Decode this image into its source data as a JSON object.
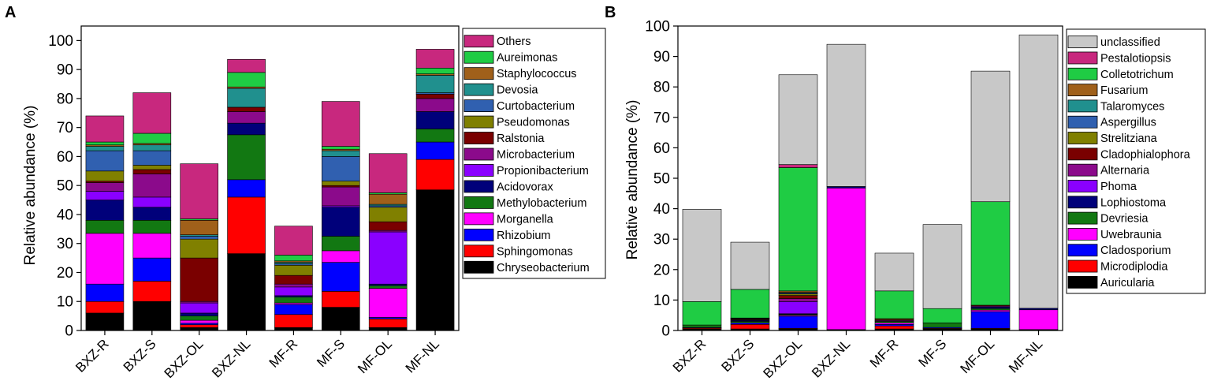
{
  "panels": [
    {
      "letter": "A",
      "ylabel": "Relative abundance (%)",
      "ylim": [
        0,
        105
      ],
      "yticks": [
        0,
        10,
        20,
        30,
        40,
        50,
        60,
        70,
        80,
        90,
        100
      ]
    },
    {
      "letter": "B",
      "ylabel": "Relative abundance (%)",
      "ylim": [
        0,
        100
      ],
      "yticks": [
        0,
        10,
        20,
        30,
        40,
        50,
        60,
        70,
        80,
        90,
        100
      ]
    }
  ],
  "chart_data": [
    {
      "type": "bar",
      "stacked": true,
      "title": "A",
      "xlabel": "",
      "ylabel": "Relative abundance (%)",
      "ylim": [
        0,
        105
      ],
      "categories": [
        "BXZ-R",
        "BXZ-S",
        "BXZ-OL",
        "BXZ-NL",
        "MF-R",
        "MF-S",
        "MF-OL",
        "MF-NL"
      ],
      "legend": [
        "Others",
        "Aureimonas",
        "Staphylococcus",
        "Devosia",
        "Curtobacterium",
        "Pseudomonas",
        "Ralstonia",
        "Microbacterium",
        "Propionibacterium",
        "Acidovorax",
        "Methylobacterium",
        "Morganella",
        "Rhizobium",
        "Sphingomonas",
        "Chryseobacterium"
      ],
      "series": [
        {
          "name": "Chryseobacterium",
          "color": "#000000",
          "values": [
            6,
            10,
            1,
            26.5,
            1,
            8,
            1,
            48.5
          ]
        },
        {
          "name": "Sphingomonas",
          "color": "#ff0000",
          "values": [
            4,
            7,
            1,
            19.5,
            4.5,
            5.5,
            3,
            10.5
          ]
        },
        {
          "name": "Rhizobium",
          "color": "#0000ff",
          "values": [
            6,
            8,
            0.5,
            6,
            3.5,
            10,
            0.5,
            6
          ]
        },
        {
          "name": "Morganella",
          "color": "#ff00ff",
          "values": [
            17.5,
            8.5,
            1,
            0,
            0.5,
            4,
            10,
            0
          ]
        },
        {
          "name": "Methylobacterium",
          "color": "#127812",
          "values": [
            4.5,
            4.5,
            1.5,
            15.5,
            2,
            5,
            1,
            4.5
          ]
        },
        {
          "name": "Acidovorax",
          "color": "#00007a",
          "values": [
            7,
            4.5,
            1,
            4,
            0.5,
            10,
            0.5,
            6
          ]
        },
        {
          "name": "Propionibacterium",
          "color": "#8a00ff",
          "values": [
            3,
            3.5,
            3.5,
            0,
            3,
            0.5,
            18,
            0
          ]
        },
        {
          "name": "Microbacterium",
          "color": "#8b0a8b",
          "values": [
            3,
            8,
            0.5,
            4,
            1,
            6.5,
            0.5,
            4.5
          ]
        },
        {
          "name": "Ralstonia",
          "color": "#7a0000",
          "values": [
            0.5,
            1.5,
            15,
            1.5,
            3,
            0.5,
            3,
            1.5
          ]
        },
        {
          "name": "Pseudomonas",
          "color": "#808000",
          "values": [
            3.5,
            1.5,
            6.5,
            0,
            3.5,
            1.5,
            5,
            0
          ]
        },
        {
          "name": "Curtobacterium",
          "color": "#3060b0",
          "values": [
            7,
            5,
            1,
            0,
            0.5,
            8.5,
            0.5,
            0.5
          ]
        },
        {
          "name": "Devosia",
          "color": "#20908e",
          "values": [
            1.5,
            2,
            0.5,
            6.5,
            0.5,
            2,
            0.5,
            6
          ]
        },
        {
          "name": "Staphylococcus",
          "color": "#a0601a",
          "values": [
            0.5,
            0.5,
            5,
            0.5,
            0.5,
            0.5,
            3.5,
            0.5
          ]
        },
        {
          "name": "Aureimonas",
          "color": "#1fcc44",
          "values": [
            1,
            3.5,
            0.5,
            5,
            2,
            1,
            0.5,
            2
          ]
        },
        {
          "name": "Others",
          "color": "#c8287e",
          "values": [
            9,
            14,
            19,
            4.5,
            10,
            15.5,
            13.5,
            6.5
          ]
        }
      ]
    },
    {
      "type": "bar",
      "stacked": true,
      "title": "B",
      "xlabel": "",
      "ylabel": "Relative abundance (%)",
      "ylim": [
        0,
        100
      ],
      "categories": [
        "BXZ-R",
        "BXZ-S",
        "BXZ-OL",
        "BXZ-NL",
        "MF-R",
        "MF-S",
        "MF-OL",
        "MF-NL"
      ],
      "legend": [
        "unclassified",
        "Pestalotiopsis",
        "Colletotrichum",
        "Fusarium",
        "Talaromyces",
        "Aspergillus",
        "Strelitziana",
        "Cladophialophora",
        "Alternaria",
        "Phoma",
        "Lophiostoma",
        "Devriesia",
        "Uwebraunia",
        "Cladosporium",
        "Microdiplodia",
        "Auricularia"
      ],
      "series": [
        {
          "name": "Auricularia",
          "color": "#000000",
          "values": [
            0.5,
            0.5,
            0.5,
            0.3,
            0.5,
            0.5,
            0.5,
            0.3
          ]
        },
        {
          "name": "Microdiplodia",
          "color": "#ff0000",
          "values": [
            0.3,
            1.5,
            0.2,
            0,
            1,
            0.2,
            0.2,
            0
          ]
        },
        {
          "name": "Cladosporium",
          "color": "#0000ff",
          "values": [
            0.2,
            0.5,
            4,
            0,
            0.5,
            0.3,
            5.5,
            0
          ]
        },
        {
          "name": "Uwebraunia",
          "color": "#ff00ff",
          "values": [
            0,
            0,
            0.3,
            46.5,
            0.5,
            0,
            0.5,
            6.5
          ]
        },
        {
          "name": "Devriesia",
          "color": "#127812",
          "values": [
            0.8,
            0.5,
            0.3,
            0,
            0.5,
            1.5,
            0.5,
            0
          ]
        },
        {
          "name": "Lophiostoma",
          "color": "#00007a",
          "values": [
            0,
            0.3,
            0.2,
            0.5,
            0,
            0,
            0.5,
            0.5
          ]
        },
        {
          "name": "Phoma",
          "color": "#8a00ff",
          "values": [
            0,
            0,
            4,
            0,
            0,
            0,
            0,
            0
          ]
        },
        {
          "name": "Alternaria",
          "color": "#8b0a8b",
          "values": [
            0,
            0.2,
            1,
            0,
            0.3,
            0,
            0.3,
            0
          ]
        },
        {
          "name": "Cladophialophora",
          "color": "#7a0000",
          "values": [
            0,
            0.2,
            1,
            0,
            0.3,
            0,
            0.3,
            0
          ]
        },
        {
          "name": "Strelitziana",
          "color": "#808000",
          "values": [
            0,
            0.2,
            0.5,
            0,
            0.3,
            0,
            0,
            0
          ]
        },
        {
          "name": "Aspergillus",
          "color": "#3060b0",
          "values": [
            0,
            0.1,
            0.3,
            0,
            0,
            0,
            0,
            0
          ]
        },
        {
          "name": "Talaromyces",
          "color": "#20908e",
          "values": [
            0,
            0.1,
            0.2,
            0,
            0,
            0,
            0,
            0
          ]
        },
        {
          "name": "Fusarium",
          "color": "#a0601a",
          "values": [
            0,
            0,
            0.5,
            0,
            0,
            0,
            0,
            0
          ]
        },
        {
          "name": "Colletotrichum",
          "color": "#1fcc44",
          "values": [
            7.7,
            9.4,
            40.5,
            0,
            9.1,
            4.7,
            34,
            0
          ]
        },
        {
          "name": "Pestalotiopsis",
          "color": "#c8287e",
          "values": [
            0,
            0,
            1,
            0,
            0,
            0,
            0,
            0
          ]
        },
        {
          "name": "unclassified",
          "color": "#c8c8c8",
          "values": [
            30.3,
            15.5,
            29.5,
            46.7,
            12.4,
            27.6,
            42.9,
            89.8
          ]
        }
      ]
    }
  ]
}
